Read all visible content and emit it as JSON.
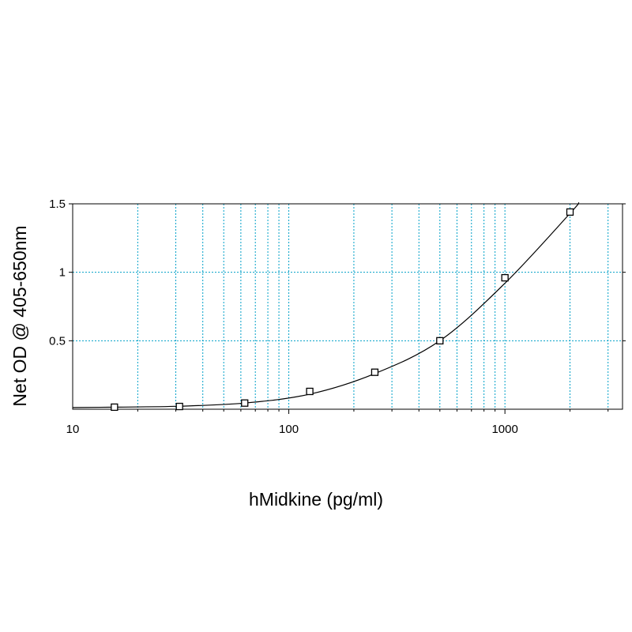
{
  "chart_data": {
    "type": "scatter",
    "title": "",
    "xlabel": "hMidkine (pg/ml)",
    "ylabel": "Net OD @ 405-650nm",
    "x_scale": "log",
    "xlim": [
      10,
      3500
    ],
    "ylim": [
      0,
      1.5
    ],
    "x_ticks": [
      10,
      100,
      1000
    ],
    "x_tick_labels": [
      "10",
      "100",
      "1000"
    ],
    "y_ticks": [
      0.5,
      1,
      1.5
    ],
    "y_tick_labels": [
      "0.5",
      "1",
      "1.5"
    ],
    "grid": true,
    "legend": "none",
    "colors": {
      "grid": "#00a0c8",
      "line": "#000000",
      "marker": "#000000"
    },
    "series": [
      {
        "x": [
          15.6,
          31.2,
          62.5,
          125,
          250,
          500,
          1000,
          2000
        ],
        "y": [
          0.015,
          0.02,
          0.045,
          0.13,
          0.27,
          0.5,
          0.96,
          1.44
        ]
      }
    ],
    "fit_curve": {
      "x": [
        10,
        15.6,
        31.2,
        62.5,
        125,
        250,
        500,
        1000,
        2000,
        2200
      ],
      "y": [
        0.012,
        0.015,
        0.022,
        0.045,
        0.11,
        0.26,
        0.5,
        0.92,
        1.43,
        1.51
      ]
    }
  }
}
